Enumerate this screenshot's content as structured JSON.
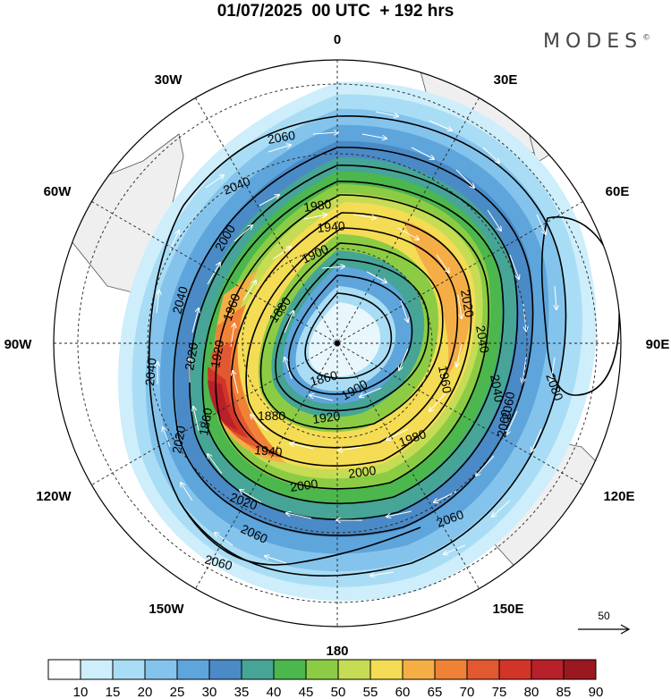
{
  "header": {
    "title": "01/07/2025  00 UTC  + 192 hrs",
    "brand": "MODES",
    "brand_mark": "©"
  },
  "map": {
    "projection": "south-polar-stereographic",
    "longitude_labels": [
      "0",
      "30E",
      "60E",
      "90E",
      "120E",
      "150E",
      "180",
      "150W",
      "120W",
      "90W",
      "60W",
      "30W"
    ],
    "contour_labels": [
      "2060",
      "2040",
      "2040",
      "2020",
      "2000",
      "1980",
      "1960",
      "1940",
      "1920",
      "1900",
      "1880",
      "1860",
      "2080",
      "2060",
      "2040",
      "2020",
      "2000",
      "1980",
      "1960",
      "1940",
      "1920",
      "1900",
      "1880",
      "1860",
      "2020",
      "2040",
      "2060",
      "2000",
      "2060",
      "2020",
      "2040",
      "2060",
      "2060"
    ],
    "colors": {
      "land": "#efefef",
      "coast": "#555555",
      "contour": "#000000",
      "arrow": "#ffffff"
    }
  },
  "reference_vector": {
    "label": "50"
  },
  "colorbar": {
    "ticks": [
      "10",
      "15",
      "20",
      "25",
      "30",
      "35",
      "40",
      "45",
      "50",
      "55",
      "60",
      "65",
      "70",
      "75",
      "80",
      "85",
      "90"
    ],
    "colors": [
      "#ffffff",
      "#cdeefa",
      "#a9ddf5",
      "#84c4ec",
      "#5ea5dc",
      "#4a8ac6",
      "#46a596",
      "#4cb74c",
      "#8ccc44",
      "#c6dc54",
      "#f4dc54",
      "#f5ae46",
      "#f08236",
      "#e25830",
      "#d23428",
      "#b8202a",
      "#9a1820"
    ]
  }
}
